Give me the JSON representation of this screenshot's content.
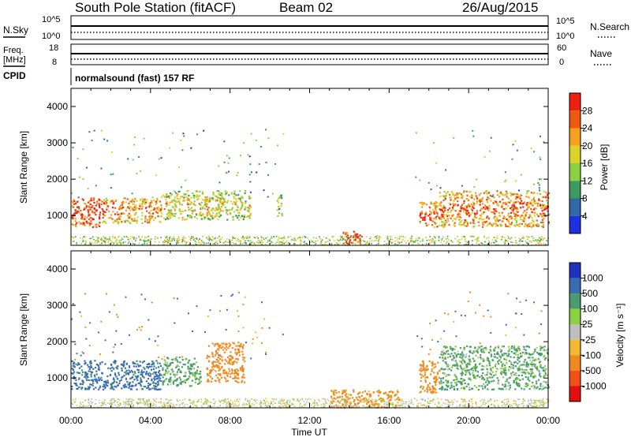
{
  "header": {
    "station": "South Pole Station (fitACF)",
    "beam": "Beam 02",
    "date": "26/Aug/2015"
  },
  "noise_panel": {
    "left_label": "N.Sky",
    "right_label": "N.Search",
    "left_ticks": [
      "10^5",
      "10^0"
    ],
    "right_ticks": [
      "10^5",
      "10^0"
    ]
  },
  "freq_panel": {
    "left_label_line1": "Freq.",
    "left_label_line2": "[MHz]",
    "right_label": "Nave",
    "left_ticks": [
      "18",
      "8"
    ],
    "right_ticks": [
      "60",
      "0"
    ]
  },
  "cpid": {
    "label": "CPID",
    "value": "normalsound (fast) 157 RF"
  },
  "x_axis": {
    "label": "Time UT",
    "ticks": [
      "00:00",
      "04:00",
      "08:00",
      "12:00",
      "16:00",
      "20:00",
      "00:00"
    ]
  },
  "y_axis": {
    "label": "Slant Range [km]",
    "ticks": [
      "4000",
      "3000",
      "2000",
      "1000"
    ]
  },
  "power_scale": {
    "label": "Power [dB]",
    "ticks": [
      "28",
      "24",
      "20",
      "16",
      "12",
      "8",
      "4"
    ],
    "colors": [
      "#f02010",
      "#f05a10",
      "#f5a020",
      "#dcd22a",
      "#8ad040",
      "#3a9a60",
      "#3068a8",
      "#2030e0"
    ]
  },
  "velocity_scale": {
    "label": "Velocity [m s⁻¹]",
    "ticks": [
      "1000",
      "500",
      "100",
      "25",
      "-25",
      "-100",
      "-500",
      "-1000"
    ],
    "colors": [
      "#2030c0",
      "#3a6cb0",
      "#4a9c70",
      "#8ad040",
      "#bfbfbf",
      "#f5b830",
      "#f08a20",
      "#f05018",
      "#e01010"
    ]
  },
  "chart_data": {
    "type": "heatmap",
    "title": "South Pole Station (fitACF) Beam 02 26/Aug/2015",
    "xlabel": "Time UT",
    "ylabel": "Slant Range [km]",
    "xlim": [
      0,
      24
    ],
    "ylim": [
      180,
      4500
    ],
    "grid": false,
    "panels": [
      {
        "name": "Power",
        "units": "dB",
        "colorbar_range": [
          0,
          32
        ],
        "regions": [
          {
            "t": [
              0.0,
              1.5
            ],
            "r": [
              700,
              1500
            ],
            "value": 24
          },
          {
            "t": [
              1.5,
              4.5
            ],
            "r": [
              800,
              1500
            ],
            "value": 20
          },
          {
            "t": [
              4.5,
              9.0
            ],
            "r": [
              900,
              1700
            ],
            "value": 14
          },
          {
            "t": [
              10.3,
              10.6
            ],
            "r": [
              1000,
              1600
            ],
            "value": 10
          },
          {
            "t": [
              13.6,
              14.6
            ],
            "r": [
              200,
              600
            ],
            "value": 26
          },
          {
            "t": [
              17.5,
              18.5
            ],
            "r": [
              700,
              1400
            ],
            "value": 22
          },
          {
            "t": [
              18.5,
              24.0
            ],
            "r": [
              700,
              1700
            ],
            "value": 20
          }
        ]
      },
      {
        "name": "Velocity",
        "units": "m s^-1",
        "colorbar_range": [
          -1000,
          1000
        ],
        "regions": [
          {
            "t": [
              0.0,
              4.5
            ],
            "r": [
              700,
              1500
            ],
            "value": 600
          },
          {
            "t": [
              4.5,
              6.5
            ],
            "r": [
              800,
              1600
            ],
            "value": 150
          },
          {
            "t": [
              6.8,
              8.7
            ],
            "r": [
              900,
              2000
            ],
            "value": -300
          },
          {
            "t": [
              13.0,
              16.5
            ],
            "r": [
              200,
              700
            ],
            "value": -200
          },
          {
            "t": [
              17.5,
              18.5
            ],
            "r": [
              600,
              1500
            ],
            "value": -300
          },
          {
            "t": [
              18.5,
              24.0
            ],
            "r": [
              700,
              1900
            ],
            "value": 150
          }
        ]
      }
    ]
  }
}
